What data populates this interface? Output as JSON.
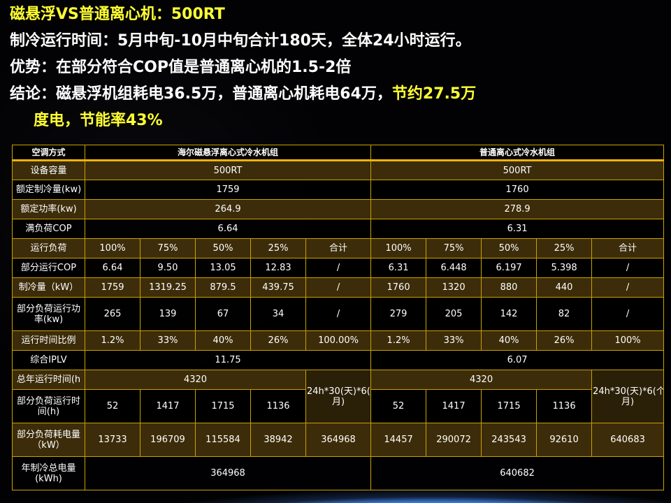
{
  "title": {
    "line1": "磁悬浮VS普通离心机：500RT",
    "line2": "制冷运行时间：5月中旬-10月中旬合计180天，全体24小时运行。",
    "line3": "优势：在部分符合COP值是普通离心机的1.5-2倍",
    "line4_white": "结论：磁悬浮机组耗电36.5万，普通离心机耗电64万，",
    "line4_yellow": "节约27.5万",
    "line5": "度电，节能率43%"
  },
  "colors": {
    "highlight": "#ffff33",
    "grid": "#c9a200",
    "row_band": "#46340a"
  },
  "table": {
    "rows": [
      [
        "空调方式",
        "海尔磁悬浮离心式冷水机组",
        "普通离心式冷水机组"
      ],
      [
        "设备容量",
        "500RT",
        "500RT"
      ],
      [
        "额定制冷量(kw)",
        "1759",
        "1760"
      ],
      [
        "额定功率(kw)",
        "264.9",
        "278.9"
      ],
      [
        "满负荷COP",
        "6.64",
        "6.31"
      ],
      [
        "运行负荷",
        "100%",
        "75%",
        "50%",
        "25%",
        "合计",
        "100%",
        "75%",
        "50%",
        "25%",
        "合计"
      ],
      [
        "部分运行COP",
        "6.64",
        "9.50",
        "13.05",
        "12.83",
        "/",
        "6.31",
        "6.448",
        "6.197",
        "5.398",
        "/"
      ],
      [
        "制冷量（kW）",
        "1759",
        "1319.25",
        "879.5",
        "439.75",
        "/",
        "1760",
        "1320",
        "880",
        "440",
        "/"
      ],
      [
        "部分负荷运行功率(kw)",
        "265",
        "139",
        "67",
        "34",
        "/",
        "279",
        "205",
        "142",
        "82",
        "/"
      ],
      [
        "运行时间比例",
        "1.2%",
        "33%",
        "40%",
        "26%",
        "100.00%",
        "1.2%",
        "33%",
        "40%",
        "26%",
        "100%"
      ],
      [
        "综合IPLV",
        "11.75",
        "6.07"
      ],
      [
        "总年运行时间(h",
        "4320",
        "24h*30(天)*6(个月)",
        "4320",
        "24h*30(天)*6(个月)"
      ],
      [
        "部分负荷运行时间(h)",
        "52",
        "1417",
        "1715",
        "1136",
        "52",
        "1417",
        "1715",
        "1136"
      ],
      [
        "部分负荷耗电量（kW）",
        "13733",
        "196709",
        "115584",
        "38942",
        "364968",
        "14457",
        "290072",
        "243543",
        "92610",
        "640683"
      ],
      [
        "年制冷总电量(kWh)",
        "364968",
        "640682"
      ]
    ]
  }
}
